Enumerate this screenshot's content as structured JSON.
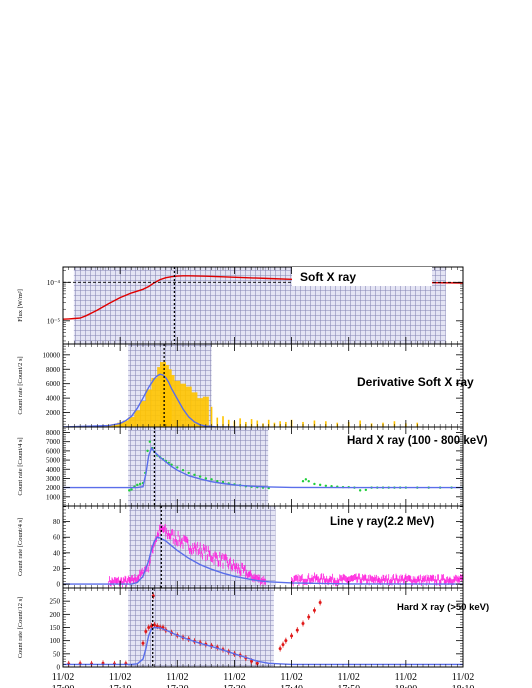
{
  "chart_data": {
    "type": "line",
    "shared_x": {
      "tick_values_min": [
        0,
        10,
        20,
        30,
        40,
        50,
        60,
        70
      ],
      "tick_labels_date": [
        "11/02",
        "11/02",
        "11/02",
        "11/02",
        "11/02",
        "11/02",
        "11/02",
        "11/02"
      ],
      "tick_labels_time": [
        "17:00",
        "17:10",
        "17:20",
        "17:30",
        "17:40",
        "17:50",
        "18:00",
        "18:10"
      ],
      "xlim_min": [
        0,
        70
      ]
    },
    "panels": [
      {
        "title": "Soft X ray",
        "ylabel": "Flux [W/m²]",
        "yscale": "log",
        "ylim": [
          2.5e-06,
          0.00025
        ],
        "yticks": [
          1e-05,
          0.0001
        ],
        "ytick_labels": [
          "10⁻⁵",
          "10⁻⁴"
        ],
        "shaded_ranges_min": [
          [
            1.9,
            67.0
          ]
        ],
        "peak_line_min": 19.5,
        "hline": 0.0001,
        "series": [
          {
            "color": "#e00000",
            "x": [
              0,
              1,
              2,
              3,
              4,
              5,
              6,
              8,
              10,
              12,
              14,
              15,
              16,
              17,
              18,
              19,
              20,
              21,
              22,
              23,
              25,
              28,
              32,
              36,
              40,
              45,
              50,
              55,
              60,
              65,
              70
            ],
            "y": [
              1.1e-05,
              1.12e-05,
              1.15e-05,
              1.18e-05,
              1.35e-05,
              1.6e-05,
              1.9e-05,
              2.8e-05,
              4e-05,
              5.3e-05,
              6.6e-05,
              7.8e-05,
              9.8e-05,
              0.000118,
              0.000132,
              0.00014,
              0.000145,
              0.000148,
              0.000148,
              0.000147,
              0.000144,
              0.000139,
              0.000132,
              0.000126,
              0.00012,
              0.000114,
              0.000109,
              0.000105,
              0.000101,
              9.8e-05,
              9.6e-05
            ]
          }
        ]
      },
      {
        "title": "Derivative Soft X ray",
        "ylabel": "Count rate [Count/2 s]",
        "yscale": "linear",
        "ylim": [
          0,
          11500
        ],
        "yticks": [
          2000,
          4000,
          6000,
          8000,
          10000
        ],
        "ytick_labels": [
          "2000",
          "4000",
          "6000",
          "8000",
          "10000"
        ],
        "shaded_ranges_min": [
          [
            11.4,
            26.0
          ]
        ],
        "peak_line_min": 17.7,
        "bars": {
          "color": "#ffc400",
          "x": [
            8,
            9,
            10,
            11,
            12,
            13,
            14,
            15,
            16,
            17,
            17.5,
            18,
            18.5,
            19,
            20,
            21,
            22,
            23,
            24,
            25,
            26,
            27,
            28,
            29,
            30,
            31,
            32,
            33,
            34,
            35,
            36,
            37,
            38,
            39,
            40,
            42,
            44,
            46,
            48,
            50,
            52,
            54,
            56,
            58,
            60,
            62
          ],
          "y": [
            300,
            400,
            600,
            900,
            1400,
            2300,
            3600,
            5200,
            6800,
            8300,
            9000,
            8600,
            8000,
            7200,
            6400,
            6000,
            5600,
            4800,
            4000,
            4200,
            2800,
            1300,
            1500,
            1000,
            800,
            1200,
            700,
            1100,
            900,
            500,
            1000,
            600,
            800,
            700,
            1000,
            700,
            900,
            800,
            600,
            700,
            900,
            500,
            600,
            800,
            500,
            600
          ]
        },
        "series": [
          {
            "color": "#5a6eea",
            "x": [
              0,
              8,
              10,
              11,
              12,
              13,
              14,
              15,
              16,
              16.5,
              17,
              17.5,
              18,
              18.5,
              19,
              20,
              21,
              22,
              23,
              24,
              25,
              27,
              30
            ],
            "y": [
              0,
              200,
              500,
              900,
              1500,
              2600,
              4000,
              5500,
              6700,
              7100,
              7300,
              7200,
              6800,
              6200,
              5300,
              3900,
              2500,
              1400,
              700,
              300,
              120,
              20,
              0
            ]
          }
        ]
      },
      {
        "title": "Hard X ray (100 - 800 keV)",
        "ylabel": "Count rate [Count/4 s]",
        "yscale": "linear",
        "ylim": [
          0,
          8600
        ],
        "yticks": [
          1000,
          2000,
          3000,
          4000,
          5000,
          6000,
          7000,
          8000
        ],
        "ytick_labels": [
          "1000",
          "2000",
          "3000",
          "4000",
          "5000",
          "6000",
          "7000",
          "8000"
        ],
        "shaded_ranges_min": [
          [
            11.4,
            35.9
          ]
        ],
        "peak_line_min": 16.0,
        "series": [
          {
            "name_hidden": "data",
            "color": "#1fcf3a",
            "style": "dots",
            "x": [
              11.6,
              12.0,
              12.5,
              13,
              13.5,
              14,
              14.4,
              14.8,
              15.2,
              15.6,
              16,
              16.5,
              17,
              17.5,
              18,
              18.5,
              19,
              20,
              21,
              22,
              23,
              24,
              25,
              26,
              27,
              28,
              29,
              30,
              31,
              32,
              33,
              34,
              35,
              36,
              42,
              42.5,
              43,
              44,
              45,
              46,
              47,
              48,
              49,
              50,
              51,
              52,
              53,
              54,
              55,
              56,
              57,
              58,
              59,
              60,
              62,
              64,
              66,
              68,
              70
            ],
            "y": [
              1700,
              1800,
              2100,
              2300,
              2400,
              2500,
              3600,
              6000,
              7000,
              6300,
              5900,
              5500,
              5300,
              5100,
              4900,
              4700,
              4500,
              4200,
              3900,
              3600,
              3400,
              3200,
              3000,
              2900,
              2700,
              2600,
              2450,
              2350,
              2250,
              2150,
              2100,
              2050,
              2000,
              1950,
              2700,
              2900,
              2700,
              2400,
              2300,
              2200,
              2150,
              2100,
              2050,
              2050,
              2000,
              1700,
              1750,
              2000,
              2000,
              2000,
              2000,
              2000,
              2000,
              2000,
              2000,
              2000,
              2000,
              2000,
              2000
            ]
          },
          {
            "name_hidden": "fit",
            "color": "#5a6eea",
            "style": "line",
            "x": [
              0,
              12,
              13,
              14,
              14.5,
              15,
              15.5,
              16,
              17,
              18,
              19,
              20,
              22,
              24,
              26,
              28,
              30,
              32,
              34,
              36,
              40,
              50,
              60,
              70
            ],
            "y": [
              2000,
              2000,
              2000,
              2100,
              3500,
              5500,
              6300,
              5900,
              5300,
              4800,
              4300,
              3900,
              3300,
              2950,
              2650,
              2450,
              2300,
              2200,
              2120,
              2080,
              2030,
              2005,
              2000,
              2000
            ]
          }
        ]
      },
      {
        "title": "Line γ ray(2.2 MeV)",
        "ylabel": "Count rate [Count/4 s]",
        "yscale": "linear",
        "ylim": [
          -5,
          100
        ],
        "yticks": [
          0,
          20,
          40,
          60,
          80
        ],
        "ytick_labels": [
          "0",
          "20",
          "40",
          "60",
          "80"
        ],
        "shaded_ranges_min": [
          [
            11.6,
            37.2
          ]
        ],
        "peak_line_min": 17.2,
        "series": [
          {
            "name_hidden": "data",
            "color": "#ff22dd",
            "style": "noisy",
            "x": [
              8,
              10,
              12,
              13,
              14,
              15,
              15.5,
              16,
              16.5,
              17,
              17.5,
              18,
              19,
              20,
              21,
              22,
              23,
              24,
              25,
              26,
              27,
              28,
              29,
              30,
              31,
              32,
              33,
              34,
              35,
              40,
              42,
              44,
              46,
              48,
              50,
              52,
              54,
              56,
              58,
              60,
              62,
              64,
              66,
              68,
              70
            ],
            "y": [
              3,
              3,
              4,
              8,
              15,
              25,
              40,
              55,
              62,
              68,
              70,
              66,
              62,
              58,
              54,
              50,
              46,
              44,
              40,
              36,
              33,
              30,
              26,
              22,
              18,
              14,
              10,
              7,
              5,
              4,
              6,
              7,
              6,
              5,
              6,
              6,
              5,
              5,
              6,
              6,
              5,
              5,
              5,
              6,
              5
            ],
            "noise": 5
          },
          {
            "name_hidden": "fit",
            "color": "#5a6eea",
            "style": "line",
            "x": [
              0,
              12,
              13,
              14,
              15,
              15.5,
              16,
              16.5,
              17,
              18,
              19,
              20,
              22,
              24,
              26,
              28,
              30,
              32,
              34,
              36,
              40,
              50,
              70
            ],
            "y": [
              0,
              0,
              2,
              10,
              30,
              45,
              55,
              60,
              59,
              55,
              49,
              43,
              33,
              25,
              19,
              14,
              10,
              7,
              4.5,
              3,
              1.5,
              0.3,
              0
            ]
          }
        ]
      },
      {
        "title": "Hard X ray (>50 keV)",
        "ylabel": "Count rate [Count/12 s]",
        "yscale": "linear",
        "ylim": [
          0,
          300
        ],
        "yticks": [
          0,
          50,
          100,
          150,
          200,
          250
        ],
        "ytick_labels": [
          "0",
          "50",
          "100",
          "150",
          "200",
          "250"
        ],
        "shaded_ranges_min": [
          [
            11.4,
            36.9
          ]
        ],
        "peak_line_min": 15.7,
        "series": [
          {
            "name_hidden": "data",
            "color": "#e01818",
            "style": "errpoints",
            "x": [
              1,
              3,
              5,
              7,
              9,
              11,
              14,
              14.5,
              15,
              15.5,
              15.8,
              16,
              16.5,
              17,
              17.5,
              18,
              19,
              20,
              21,
              22,
              23,
              24,
              25,
              26,
              27,
              28,
              29,
              30,
              31,
              32,
              33,
              34,
              38,
              38.5,
              39,
              40,
              41,
              42,
              43,
              44,
              45
            ],
            "y": [
              12,
              13,
              12,
              14,
              12,
              13,
              90,
              135,
              150,
              155,
              270,
              160,
              155,
              150,
              150,
              140,
              130,
              120,
              112,
              106,
              98,
              92,
              86,
              80,
              74,
              66,
              58,
              50,
              44,
              34,
              22,
              14,
              70,
              85,
              100,
              118,
              140,
              165,
              190,
              215,
              245
            ]
          },
          {
            "name_hidden": "fit",
            "color": "#5a6eea",
            "style": "line",
            "x": [
              0,
              12,
              13,
              14,
              14.5,
              15,
              15.5,
              16,
              17,
              18,
              19,
              20,
              22,
              24,
              26,
              28,
              30,
              32,
              34,
              36,
              40,
              50,
              70
            ],
            "y": [
              10,
              10,
              12,
              30,
              70,
              120,
              145,
              150,
              148,
              140,
              130,
              120,
              104,
              90,
              78,
              64,
              50,
              36,
              22,
              14,
              10,
              10,
              10
            ]
          }
        ]
      }
    ]
  }
}
